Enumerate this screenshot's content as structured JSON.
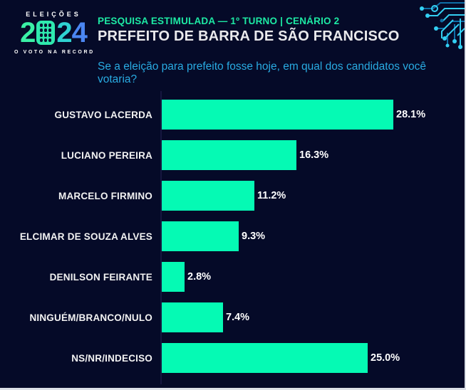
{
  "header": {
    "logo": {
      "line_top": "ELEIÇÕES",
      "year": "2024",
      "line_bottom": "O VOTO NA RECORD"
    },
    "kicker": "PESQUISA ESTIMULADA — 1º TURNO | CENÁRIO 2",
    "title": "PREFEITO DE BARRA DE SÃO FRANCISCO",
    "question": "Se a eleição para prefeito fosse hoje, em qual dos candidatos você votaria?"
  },
  "colors": {
    "background": "#050a28",
    "bar": "#05fab4",
    "kicker_text": "#1de9a4",
    "title_text": "#e9e9ec",
    "question_text": "#29abe2",
    "label_text": "#f2f2f2",
    "value_text": "#ffffff",
    "axis_line": "#161640",
    "edge_border": "#dde1e8",
    "circuit_bright": "#33cff2",
    "circuit_dark": "#0f6ea6",
    "logo_digit_colors": [
      "#3af0a6",
      "#2fe9ae",
      "#2fd2d2",
      "#4b86f2"
    ]
  },
  "chart_data": {
    "type": "bar",
    "orientation": "horizontal",
    "title": "PREFEITO DE BARRA DE SÃO FRANCISCO",
    "subtitle": "PESQUISA ESTIMULADA — 1º TURNO | CENÁRIO 2",
    "question": "Se a eleição para prefeito fosse hoje, em qual dos candidatos você votaria?",
    "categories": [
      "GUSTAVO LACERDA",
      "LUCIANO PEREIRA",
      "MARCELO FIRMINO",
      "ELCIMAR DE SOUZA ALVES",
      "DENILSON FEIRANTE",
      "NINGUÉM/BRANCO/NULO",
      "NS/NR/INDECISO"
    ],
    "values": [
      28.1,
      16.3,
      11.2,
      9.3,
      2.8,
      7.4,
      25.0
    ],
    "value_labels": [
      "28.1%",
      "16.3%",
      "11.2%",
      "9.3%",
      "2.8%",
      "7.4%",
      "25.0%"
    ],
    "xlabel": "",
    "ylabel": "",
    "xlim": [
      0,
      30
    ],
    "grid": false,
    "legend": false,
    "bar_color": "#05fab4"
  }
}
